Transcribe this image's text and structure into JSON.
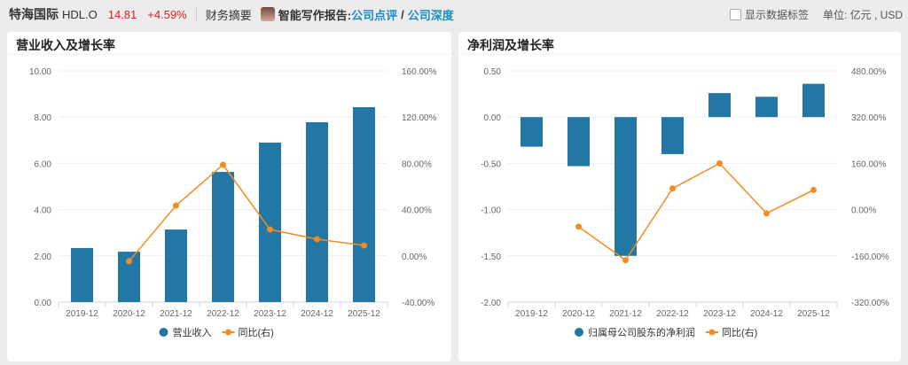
{
  "header": {
    "company": "特海国际",
    "ticker": "HDL.O",
    "price": "14.81",
    "change": "+4.59%",
    "tab": "财务摘要",
    "ai_label": "智能写作报告:",
    "link1": "公司点评",
    "slash": "/",
    "link2": "公司深度",
    "show_labels": "显示数据标签",
    "unit": "单位: 亿元 , USD"
  },
  "colors": {
    "bar": "#2377a4",
    "line": "#f68b1f"
  },
  "chart_data": [
    {
      "type": "bar+line",
      "title": "营业收入及增长率",
      "categories": [
        "2019-12",
        "2020-12",
        "2021-12",
        "2022-12",
        "2023-12",
        "2024-12",
        "2025-12"
      ],
      "left_ticks": [
        "10.00",
        "8.00",
        "6.00",
        "4.00",
        "2.00",
        "0.00"
      ],
      "ylim": [
        0,
        10
      ],
      "right_ticks": [
        "160.00%",
        "120.00%",
        "80.00%",
        "40.00%",
        "0.00%",
        "-40.00%"
      ],
      "y2lim": [
        -40,
        160
      ],
      "series": [
        {
          "name": "营业收入",
          "type": "bar",
          "values": [
            2.34,
            2.18,
            3.14,
            5.63,
            6.9,
            7.78,
            8.43
          ]
        },
        {
          "name": "同比(右)",
          "type": "line",
          "values": [
            null,
            -4.7,
            43.5,
            78.8,
            22.8,
            14.4,
            9.0
          ]
        }
      ],
      "legend": "bottom",
      "grid": true
    },
    {
      "type": "bar+line",
      "title": "净利润及增长率",
      "categories": [
        "2019-12",
        "2020-12",
        "2021-12",
        "2022-12",
        "2023-12",
        "2024-12",
        "2025-12"
      ],
      "left_ticks": [
        "0.50",
        "0.00",
        "-0.50",
        "-1.00",
        "-1.50",
        "-2.00"
      ],
      "ylim": [
        -2,
        0.5
      ],
      "right_ticks": [
        "480.00%",
        "320.00%",
        "160.00%",
        "0.00%",
        "-160.00%",
        "-320.00%"
      ],
      "y2lim": [
        -320,
        480
      ],
      "series": [
        {
          "name": "归属母公司股东的净利润",
          "type": "bar",
          "values": [
            -0.32,
            -0.53,
            -1.5,
            -0.4,
            0.26,
            0.22,
            0.36
          ]
        },
        {
          "name": "同比(右)",
          "type": "line",
          "values": [
            null,
            -59,
            -175,
            73,
            160,
            -13,
            68
          ]
        }
      ],
      "legend": "bottom",
      "grid": true
    }
  ]
}
